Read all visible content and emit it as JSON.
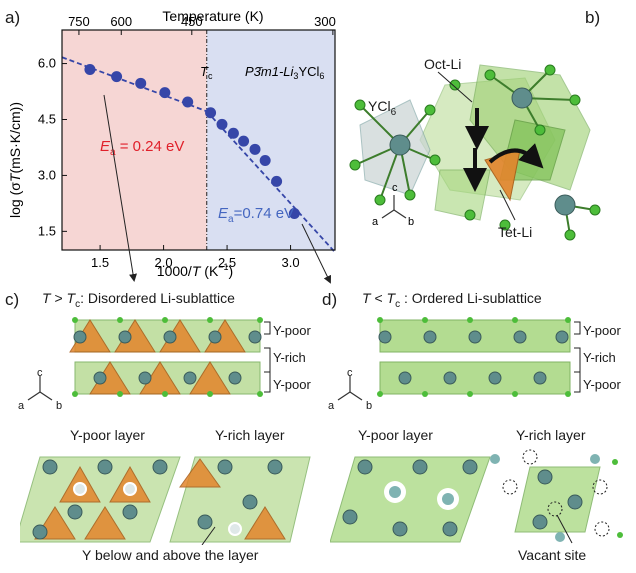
{
  "panels": {
    "a": "a)",
    "b": "b)",
    "c": "c)",
    "d": "d)"
  },
  "chart_data": {
    "type": "scatter",
    "top_axis_label": "Temperature (K)",
    "top_ticks": [
      "750",
      "600",
      "450",
      "300"
    ],
    "top_tick_invT": [
      1.3333,
      1.6667,
      2.2222,
      3.3333
    ],
    "xlabel_pre": "1000/",
    "xlabel_T": "T",
    "xlabel_unit": " (K",
    "xlabel_exp": "−1",
    "xlabel_close": ")",
    "ylabel_pre": "log (σ",
    "ylabel_T": "T",
    "ylabel_post": "(mS·K/cm))",
    "xlim": [
      1.2,
      3.35
    ],
    "ylim": [
      1.0,
      6.9
    ],
    "xticks": [
      "1.5",
      "2.0",
      "2.5",
      "3.0"
    ],
    "yticks": [
      "1.5",
      "3.0",
      "4.5",
      "6.0"
    ],
    "x": [
      1.42,
      1.63,
      1.82,
      2.01,
      2.19,
      2.37,
      2.46,
      2.55,
      2.63,
      2.72,
      2.8,
      2.89,
      3.03
    ],
    "y": [
      5.84,
      5.65,
      5.47,
      5.22,
      4.97,
      4.68,
      4.37,
      4.13,
      3.92,
      3.7,
      3.4,
      2.84,
      1.98
    ],
    "fit_high": {
      "x": [
        1.2,
        2.34
      ],
      "y": [
        6.17,
        4.72
      ]
    },
    "fit_low": {
      "x": [
        2.34,
        3.35
      ],
      "y": [
        4.72,
        0.94
      ]
    },
    "tc_x": 2.34,
    "tc_label": "T",
    "tc_sub": "c",
    "phase_label": "P3̄m1-Li",
    "phase_sub3": "3",
    "phase_mid": "YCl",
    "phase_sub6": "6",
    "ea_high_pre": "E",
    "ea_high_sub": "a",
    "ea_high_val": " = 0.24 eV",
    "ea_low_pre": "E",
    "ea_low_sub": "a",
    "ea_low_val": "=0.74 eV",
    "colors": {
      "high_bg": "#f6d6d4",
      "low_bg": "#d9dff2",
      "marker": "#3646a8",
      "fit": "#3646a8",
      "ea_high": "#e0202a",
      "ea_low": "#4466c0"
    }
  },
  "panel_b": {
    "oct_li": "Oct-Li",
    "ycl6": "YCl",
    "ycl6_sub": "6",
    "tet_li": "Tet-Li",
    "axis_c": "c",
    "axis_a": "a",
    "axis_b": "b"
  },
  "panel_c": {
    "title_T": "T",
    "title_gt": " > ",
    "title_Tc": "T",
    "title_c": "c",
    "title_rest": ": Disordered Li-sublattice",
    "layers": [
      "Y-poor",
      "Y-rich",
      "Y-poor"
    ],
    "poor_label": "Y-poor layer",
    "rich_label": "Y-rich layer",
    "footnote": "Y below and above the layer",
    "axis_c": "c",
    "axis_a": "a",
    "axis_b": "b"
  },
  "panel_d": {
    "title_T": "T",
    "title_lt": " < ",
    "title_Tc": "T",
    "title_c": "c",
    "title_rest": " : Ordered Li-sublattice",
    "layers": [
      "Y-poor",
      "Y-rich",
      "Y-poor"
    ],
    "poor_label": "Y-poor layer",
    "rich_label": "Y-rich layer",
    "footnote": "Vacant site",
    "axis_c": "c",
    "axis_a": "a",
    "axis_b": "b"
  }
}
